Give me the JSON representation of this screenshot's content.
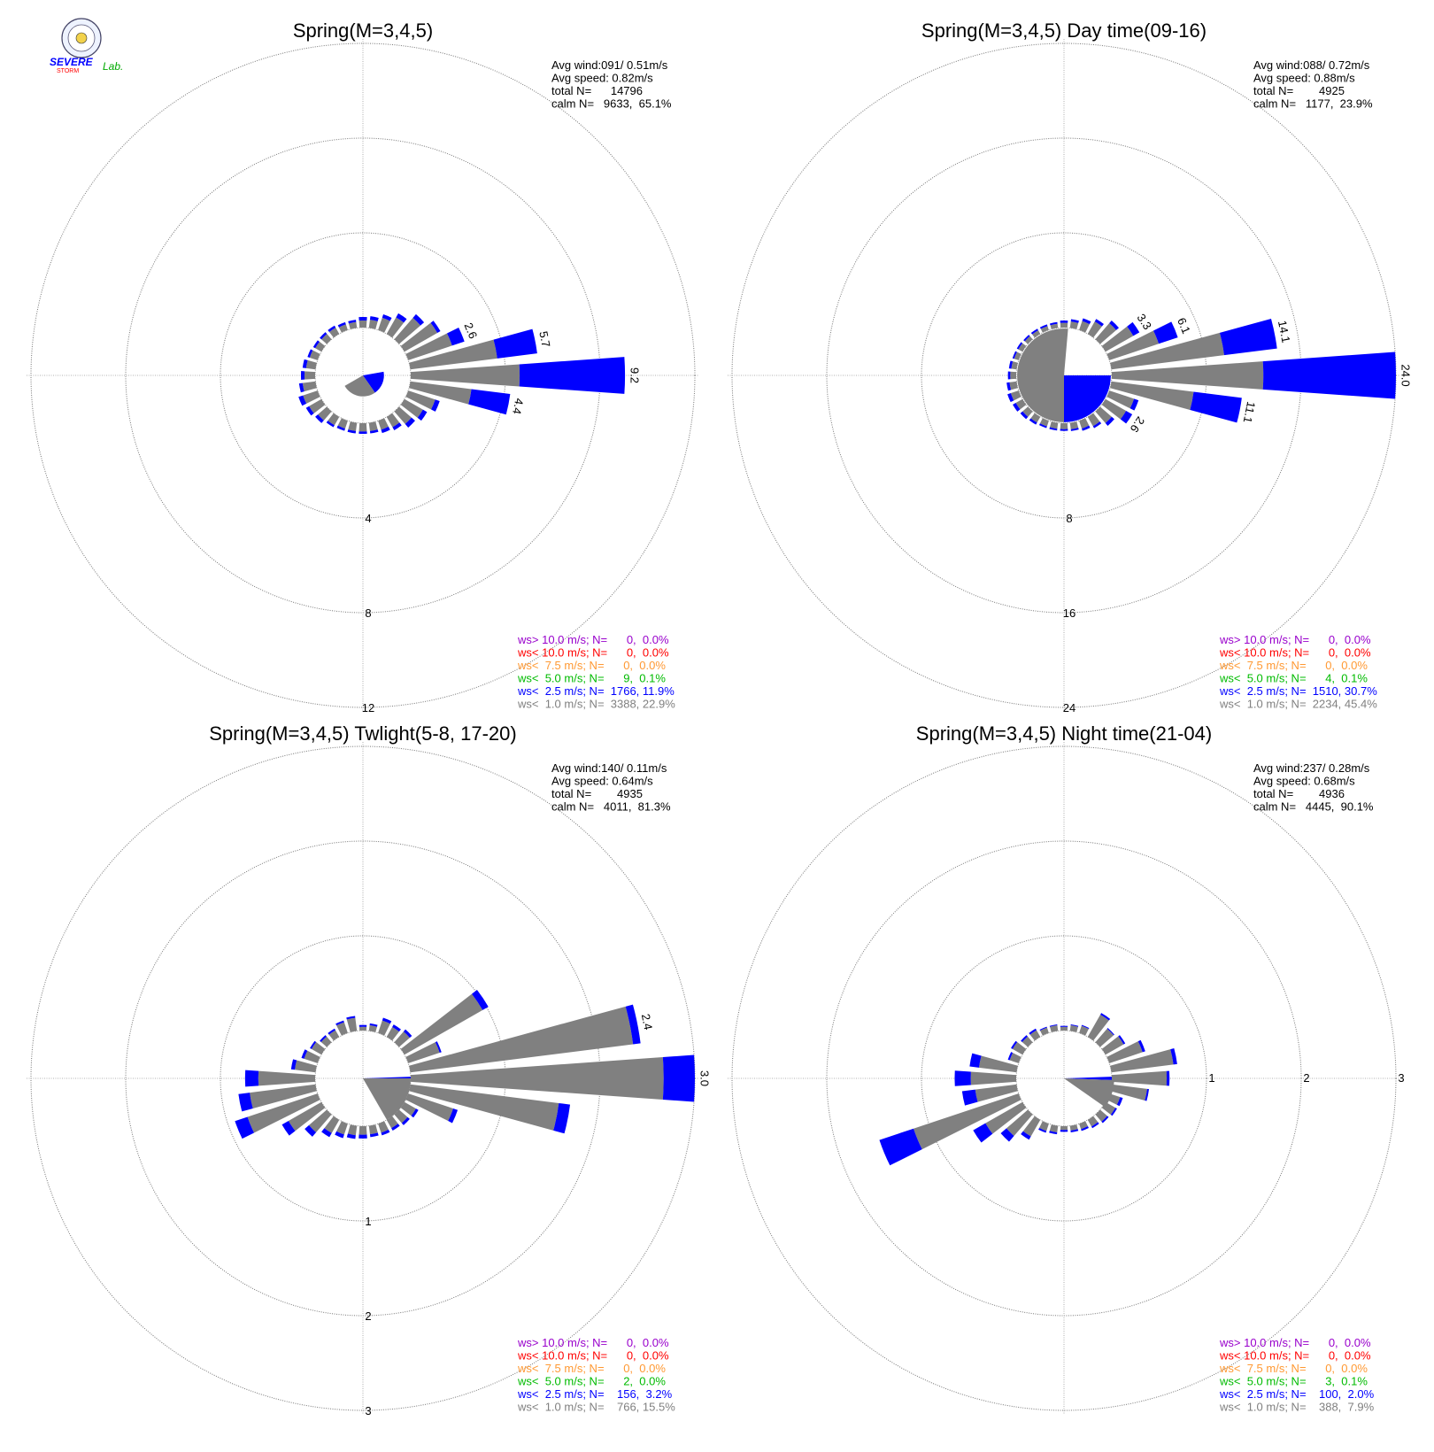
{
  "logo": {
    "top": "SEVERE",
    "bottom": "STORM",
    "lab": "Lab."
  },
  "colors": {
    "gt10": "#9900cc",
    "lt10": "#ff0000",
    "lt7_5": "#ff9933",
    "lt5": "#00bb00",
    "lt2_5": "#0000ff",
    "lt1": "#808080",
    "axis": "#999999",
    "text": "#000000"
  },
  "chart_data": [
    {
      "type": "windrose",
      "title": "Spring(M=3,4,5)",
      "stats": [
        "Avg wind:091/ 0.51m/s",
        "Avg speed: 0.82m/s",
        "total N=      14796",
        "calm N=   9633,  65.1%"
      ],
      "legend": [
        {
          "label": "ws> 10.0 m/s; N=      0,  0.0%",
          "key": "gt10"
        },
        {
          "label": "ws< 10.0 m/s; N=      0,  0.0%",
          "key": "lt10"
        },
        {
          "label": "ws<  7.5 m/s; N=      0,  0.0%",
          "key": "lt7_5"
        },
        {
          "label": "ws<  5.0 m/s; N=      9,  0.1%",
          "key": "lt5"
        },
        {
          "label": "ws<  2.5 m/s; N=  1766, 11.9%",
          "key": "lt2_5"
        },
        {
          "label": "ws<  1.0 m/s; N=  3388, 22.9%",
          "key": "lt1"
        }
      ],
      "ring_labels": [
        "4",
        "8",
        "12"
      ],
      "ring_max": 12,
      "direction_labels": [
        {
          "dir": 67.5,
          "text": "2.6"
        },
        {
          "dir": 78.75,
          "text": "5.7"
        },
        {
          "dir": 90,
          "text": "9.2"
        },
        {
          "dir": 101.25,
          "text": "4.4"
        }
      ],
      "sector_deg": 11.25,
      "bars": [
        {
          "dir": 0,
          "gray": 0.3,
          "blue": 0.15
        },
        {
          "dir": 11.25,
          "gray": 0.35,
          "blue": 0.15
        },
        {
          "dir": 22.5,
          "gray": 0.55,
          "blue": 0.15
        },
        {
          "dir": 33.75,
          "gray": 0.8,
          "blue": 0.2
        },
        {
          "dir": 45,
          "gray": 1.2,
          "blue": 0.2
        },
        {
          "dir": 56.25,
          "gray": 1.6,
          "blue": 0.15
        },
        {
          "dir": 67.5,
          "gray": 1.95,
          "blue": 0.55
        },
        {
          "dir": 78.75,
          "gray": 3.7,
          "blue": 1.7
        },
        {
          "dir": 90,
          "gray": 4.6,
          "blue": 4.45
        },
        {
          "dir": 101.25,
          "gray": 2.6,
          "blue": 1.65
        },
        {
          "dir": 112.5,
          "gray": 1.2,
          "blue": 0.2
        },
        {
          "dir": 123.75,
          "gray": 0.9,
          "blue": 0.2
        },
        {
          "dir": 135,
          "gray": 0.7,
          "blue": 0.2
        },
        {
          "dir": 146.25,
          "gray": 0.5,
          "blue": 0.15
        },
        {
          "dir": 157.5,
          "gray": 0.4,
          "blue": 0.15
        },
        {
          "dir": 168.75,
          "gray": 0.35,
          "blue": 0.1
        },
        {
          "dir": 180,
          "gray": 0.35,
          "blue": 0.1
        },
        {
          "dir": 191.25,
          "gray": 0.35,
          "blue": 0.1
        },
        {
          "dir": 202.5,
          "gray": 0.35,
          "blue": 0.1
        },
        {
          "dir": 213.75,
          "gray": 0.4,
          "blue": 0.1
        },
        {
          "dir": 225,
          "gray": 0.5,
          "blue": 0.15
        },
        {
          "dir": 236.25,
          "gray": 0.6,
          "blue": 0.15
        },
        {
          "dir": 247.5,
          "gray": 0.65,
          "blue": 0.2
        },
        {
          "dir": 258.75,
          "gray": 0.55,
          "blue": 0.15
        },
        {
          "dir": 270,
          "gray": 0.45,
          "blue": 0.15
        },
        {
          "dir": 281.25,
          "gray": 0.4,
          "blue": 0.15
        },
        {
          "dir": 292.5,
          "gray": 0.35,
          "blue": 0.1
        },
        {
          "dir": 303.75,
          "gray": 0.3,
          "blue": 0.1
        },
        {
          "dir": 315,
          "gray": 0.3,
          "blue": 0.1
        },
        {
          "dir": 326.25,
          "gray": 0.3,
          "blue": 0.1
        },
        {
          "dir": 337.5,
          "gray": 0.25,
          "blue": 0.1
        },
        {
          "dir": 348.75,
          "gray": 0.25,
          "blue": 0.1
        }
      ],
      "calm_wedges": [
        {
          "start": 80,
          "end": 145,
          "color": "blue"
        },
        {
          "start": 145,
          "end": 240,
          "color": "gray"
        }
      ],
      "calm_wedge_radius": 0.44
    },
    {
      "type": "windrose",
      "title": "Spring(M=3,4,5) Day time(09-16)",
      "stats": [
        "Avg wind:088/ 0.72m/s",
        "Avg speed: 0.88m/s",
        "total N=        4925",
        "calm N=   1177,  23.9%"
      ],
      "legend": [
        {
          "label": "ws> 10.0 m/s; N=      0,  0.0%",
          "key": "gt10"
        },
        {
          "label": "ws< 10.0 m/s; N=      0,  0.0%",
          "key": "lt10"
        },
        {
          "label": "ws<  7.5 m/s; N=      0,  0.0%",
          "key": "lt7_5"
        },
        {
          "label": "ws<  5.0 m/s; N=      4,  0.1%",
          "key": "lt5"
        },
        {
          "label": "ws<  2.5 m/s; N=  1510, 30.7%",
          "key": "lt2_5"
        },
        {
          "label": "ws<  1.0 m/s; N=  2234, 45.4%",
          "key": "lt1"
        }
      ],
      "ring_labels": [
        "8",
        "16",
        "24"
      ],
      "ring_max": 24,
      "direction_labels": [
        {
          "dir": 56.25,
          "text": "3.3"
        },
        {
          "dir": 67.5,
          "text": "6.1"
        },
        {
          "dir": 78.75,
          "text": "14.1"
        },
        {
          "dir": 90,
          "text": "24.0"
        },
        {
          "dir": 101.25,
          "text": "11.1"
        },
        {
          "dir": 123.75,
          "text": "2.6"
        }
      ],
      "sector_deg": 11.25,
      "bars": [
        {
          "dir": 0,
          "gray": 0.4,
          "blue": 0.2
        },
        {
          "dir": 11.25,
          "gray": 0.55,
          "blue": 0.2
        },
        {
          "dir": 22.5,
          "gray": 0.8,
          "blue": 0.25
        },
        {
          "dir": 33.75,
          "gray": 1.2,
          "blue": 0.25
        },
        {
          "dir": 45,
          "gray": 1.8,
          "blue": 0.3
        },
        {
          "dir": 56.25,
          "gray": 2.7,
          "blue": 0.6
        },
        {
          "dir": 67.5,
          "gray": 4.4,
          "blue": 1.7
        },
        {
          "dir": 78.75,
          "gray": 9.6,
          "blue": 4.5
        },
        {
          "dir": 90,
          "gray": 12.8,
          "blue": 11.2
        },
        {
          "dir": 101.25,
          "gray": 7.0,
          "blue": 4.1
        },
        {
          "dir": 112.5,
          "gray": 2.2,
          "blue": 0.4
        },
        {
          "dir": 123.75,
          "gray": 2.0,
          "blue": 0.6
        },
        {
          "dir": 135,
          "gray": 1.3,
          "blue": 0.3
        },
        {
          "dir": 146.25,
          "gray": 0.9,
          "blue": 0.2
        },
        {
          "dir": 157.5,
          "gray": 0.7,
          "blue": 0.2
        },
        {
          "dir": 168.75,
          "gray": 0.55,
          "blue": 0.15
        },
        {
          "dir": 180,
          "gray": 0.5,
          "blue": 0.15
        },
        {
          "dir": 191.25,
          "gray": 0.5,
          "blue": 0.15
        },
        {
          "dir": 202.5,
          "gray": 0.5,
          "blue": 0.15
        },
        {
          "dir": 213.75,
          "gray": 0.55,
          "blue": 0.2
        },
        {
          "dir": 225,
          "gray": 0.6,
          "blue": 0.25
        },
        {
          "dir": 236.25,
          "gray": 0.65,
          "blue": 0.3
        },
        {
          "dir": 247.5,
          "gray": 0.7,
          "blue": 0.3
        },
        {
          "dir": 258.75,
          "gray": 0.6,
          "blue": 0.25
        },
        {
          "dir": 270,
          "gray": 0.5,
          "blue": 0.2
        },
        {
          "dir": 281.25,
          "gray": 0.45,
          "blue": 0.2
        },
        {
          "dir": 292.5,
          "gray": 0.4,
          "blue": 0.15
        },
        {
          "dir": 303.75,
          "gray": 0.4,
          "blue": 0.15
        },
        {
          "dir": 315,
          "gray": 0.35,
          "blue": 0.15
        },
        {
          "dir": 326.25,
          "gray": 0.35,
          "blue": 0.15
        },
        {
          "dir": 337.5,
          "gray": 0.35,
          "blue": 0.15
        },
        {
          "dir": 348.75,
          "gray": 0.35,
          "blue": 0.15
        }
      ],
      "calm_wedges": [
        {
          "start": 90,
          "end": 180,
          "color": "blue"
        },
        {
          "start": 180,
          "end": 360,
          "color": "gray"
        },
        {
          "start": 0,
          "end": 5,
          "color": "gray"
        }
      ],
      "calm_wedge_radius": 0.98
    },
    {
      "type": "windrose",
      "title": "Spring(M=3,4,5) Twlight(5-8, 17-20)",
      "stats": [
        "Avg wind:140/ 0.11m/s",
        "Avg speed: 0.64m/s",
        "total N=        4935",
        "calm N=   4011,  81.3%"
      ],
      "legend": [
        {
          "label": "ws> 10.0 m/s; N=      0,  0.0%",
          "key": "gt10"
        },
        {
          "label": "ws< 10.0 m/s; N=      0,  0.0%",
          "key": "lt10"
        },
        {
          "label": "ws<  7.5 m/s; N=      0,  0.0%",
          "key": "lt7_5"
        },
        {
          "label": "ws<  5.0 m/s; N=      2,  0.0%",
          "key": "lt5"
        },
        {
          "label": "ws<  2.5 m/s; N=    156,  3.2%",
          "key": "lt2_5"
        },
        {
          "label": "ws<  1.0 m/s; N=    766, 15.5%",
          "key": "lt1"
        }
      ],
      "ring_labels": [
        "1",
        "2",
        "3"
      ],
      "ring_max": 3,
      "direction_labels": [
        {
          "dir": 78.75,
          "text": "2.4"
        },
        {
          "dir": 90,
          "text": "3.0"
        }
      ],
      "sector_deg": 11.25,
      "bars": [
        {
          "dir": 0,
          "gray": 0.04,
          "blue": 0.02
        },
        {
          "dir": 11.25,
          "gray": 0.06,
          "blue": 0.02
        },
        {
          "dir": 22.5,
          "gray": 0.14,
          "blue": 0.03
        },
        {
          "dir": 33.75,
          "gray": 0.12,
          "blue": 0.03
        },
        {
          "dir": 45,
          "gray": 0.15,
          "blue": 0.03
        },
        {
          "dir": 56.25,
          "gray": 0.95,
          "blue": 0.07
        },
        {
          "dir": 67.5,
          "gray": 0.35,
          "blue": 0.02
        },
        {
          "dir": 78.75,
          "gray": 2.37,
          "blue": 0.08
        },
        {
          "dir": 90,
          "gray": 2.67,
          "blue": 0.33
        },
        {
          "dir": 101.25,
          "gray": 1.58,
          "blue": 0.12
        },
        {
          "dir": 112.5,
          "gray": 0.5,
          "blue": 0.05
        },
        {
          "dir": 123.75,
          "gray": 0.14,
          "blue": 0.03
        },
        {
          "dir": 135,
          "gray": 0.12,
          "blue": 0.03
        },
        {
          "dir": 146.25,
          "gray": 0.1,
          "blue": 0.03
        },
        {
          "dir": 157.5,
          "gray": 0.1,
          "blue": 0.03
        },
        {
          "dir": 168.75,
          "gray": 0.09,
          "blue": 0.03
        },
        {
          "dir": 180,
          "gray": 0.09,
          "blue": 0.04
        },
        {
          "dir": 191.25,
          "gray": 0.1,
          "blue": 0.04
        },
        {
          "dir": 202.5,
          "gray": 0.12,
          "blue": 0.04
        },
        {
          "dir": 213.75,
          "gray": 0.16,
          "blue": 0.05
        },
        {
          "dir": 225,
          "gray": 0.25,
          "blue": 0.06
        },
        {
          "dir": 236.25,
          "gray": 0.4,
          "blue": 0.08
        },
        {
          "dir": 247.5,
          "gray": 0.78,
          "blue": 0.14
        },
        {
          "dir": 258.75,
          "gray": 0.7,
          "blue": 0.12
        },
        {
          "dir": 270,
          "gray": 0.6,
          "blue": 0.14
        },
        {
          "dir": 281.25,
          "gray": 0.22,
          "blue": 0.04
        },
        {
          "dir": 292.5,
          "gray": 0.15,
          "blue": 0.03
        },
        {
          "dir": 303.75,
          "gray": 0.12,
          "blue": 0.02
        },
        {
          "dir": 315,
          "gray": 0.08,
          "blue": 0.02
        },
        {
          "dir": 326.25,
          "gray": 0.08,
          "blue": 0.02
        },
        {
          "dir": 337.5,
          "gray": 0.12,
          "blue": 0.02
        },
        {
          "dir": 348.75,
          "gray": 0.14,
          "blue": 0.02
        }
      ],
      "calm_wedges": [
        {
          "start": 88,
          "end": 90,
          "color": "blue"
        },
        {
          "start": 90,
          "end": 150,
          "color": "gray"
        }
      ],
      "calm_wedge_radius": 1.0
    },
    {
      "type": "windrose",
      "title": "Spring(M=3,4,5) Night time(21-04)",
      "stats": [
        "Avg wind:237/ 0.28m/s",
        "Avg speed: 0.68m/s",
        "total N=        4936",
        "calm N=   4445,  90.1%"
      ],
      "legend": [
        {
          "label": "ws> 10.0 m/s; N=      0,  0.0%",
          "key": "gt10"
        },
        {
          "label": "ws< 10.0 m/s; N=      0,  0.0%",
          "key": "lt10"
        },
        {
          "label": "ws<  7.5 m/s; N=      0,  0.0%",
          "key": "lt7_5"
        },
        {
          "label": "ws<  5.0 m/s; N=      3,  0.1%",
          "key": "lt5"
        },
        {
          "label": "ws<  2.5 m/s; N=    100,  2.0%",
          "key": "lt2_5"
        },
        {
          "label": "ws<  1.0 m/s; N=    388,  7.9%",
          "key": "lt1"
        }
      ],
      "ring_labels": [
        "1",
        "2",
        "3"
      ],
      "ring_labels_east": true,
      "ring_max": 3,
      "direction_labels": [],
      "sector_deg": 11.25,
      "bars": [
        {
          "dir": 0,
          "gray": 0.04,
          "blue": 0.01
        },
        {
          "dir": 11.25,
          "gray": 0.06,
          "blue": 0.01
        },
        {
          "dir": 22.5,
          "gray": 0.08,
          "blue": 0.01
        },
        {
          "dir": 33.75,
          "gray": 0.27,
          "blue": 0.02
        },
        {
          "dir": 45,
          "gray": 0.19,
          "blue": 0.01
        },
        {
          "dir": 56.25,
          "gray": 0.22,
          "blue": 0.02
        },
        {
          "dir": 67.5,
          "gray": 0.37,
          "blue": 0.03
        },
        {
          "dir": 78.75,
          "gray": 0.66,
          "blue": 0.04
        },
        {
          "dir": 90,
          "gray": 0.58,
          "blue": 0.03
        },
        {
          "dir": 101.25,
          "gray": 0.38,
          "blue": 0.02
        },
        {
          "dir": 112.5,
          "gray": 0.12,
          "blue": 0.03
        },
        {
          "dir": 123.75,
          "gray": 0.12,
          "blue": 0.02
        },
        {
          "dir": 135,
          "gray": 0.1,
          "blue": 0.02
        },
        {
          "dir": 146.25,
          "gray": 0.08,
          "blue": 0.02
        },
        {
          "dir": 157.5,
          "gray": 0.06,
          "blue": 0.02
        },
        {
          "dir": 168.75,
          "gray": 0.05,
          "blue": 0.02
        },
        {
          "dir": 180,
          "gray": 0.04,
          "blue": 0.02
        },
        {
          "dir": 191.25,
          "gray": 0.07,
          "blue": 0.02
        },
        {
          "dir": 202.5,
          "gray": 0.08,
          "blue": 0.02
        },
        {
          "dir": 213.75,
          "gray": 0.2,
          "blue": 0.04
        },
        {
          "dir": 225,
          "gray": 0.3,
          "blue": 0.08
        },
        {
          "dir": 236.25,
          "gray": 0.45,
          "blue": 0.15
        },
        {
          "dir": 247.5,
          "gray": 1.17,
          "blue": 0.38
        },
        {
          "dir": 258.75,
          "gray": 0.44,
          "blue": 0.14
        },
        {
          "dir": 270,
          "gray": 0.48,
          "blue": 0.17
        },
        {
          "dir": 281.25,
          "gray": 0.4,
          "blue": 0.1
        },
        {
          "dir": 292.5,
          "gray": 0.1,
          "blue": 0.02
        },
        {
          "dir": 303.75,
          "gray": 0.12,
          "blue": 0.02
        },
        {
          "dir": 315,
          "gray": 0.08,
          "blue": 0.02
        },
        {
          "dir": 326.25,
          "gray": 0.08,
          "blue": 0.02
        },
        {
          "dir": 337.5,
          "gray": 0.06,
          "blue": 0.01
        },
        {
          "dir": 348.75,
          "gray": 0.06,
          "blue": 0.01
        }
      ],
      "calm_wedges": [
        {
          "start": 88,
          "end": 92,
          "color": "blue"
        },
        {
          "start": 92,
          "end": 125,
          "color": "gray"
        }
      ],
      "calm_wedge_radius": 1.05
    }
  ]
}
